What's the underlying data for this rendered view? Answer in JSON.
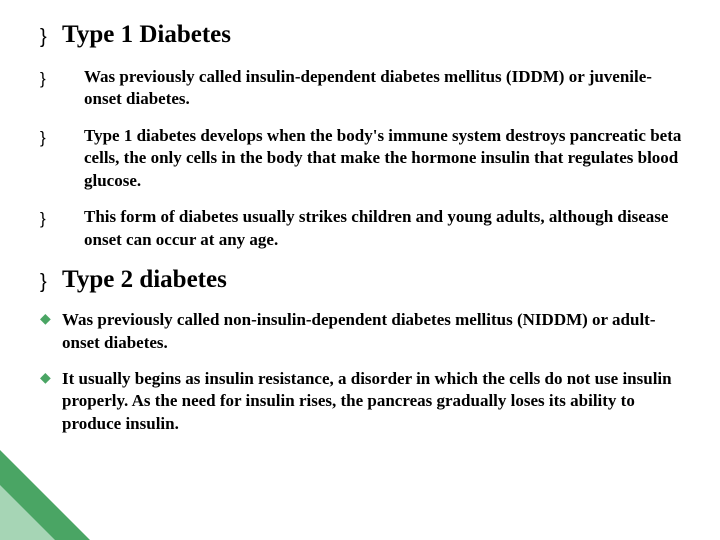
{
  "slide": {
    "heading1": "Type 1 Diabetes",
    "bullets1": [
      "Was previously called insulin-dependent diabetes mellitus (IDDM) or juvenile-onset diabetes.",
      "Type 1 diabetes develops when the body's immune system destroys pancreatic beta cells, the only cells in the body that make the hormone insulin that regulates blood glucose.",
      "This form of diabetes usually strikes children and young adults, although disease onset can occur at any age."
    ],
    "heading2": "Type 2 diabetes",
    "bullets2": [
      "Was previously called non-insulin-dependent diabetes mellitus (NIDDM) or adult-onset diabetes.",
      "It usually begins as insulin resistance, a disorder in which the cells do not use insulin properly. As the need for insulin rises, the pancreas gradually loses its ability to produce insulin."
    ]
  },
  "style": {
    "accent_color": "#4aa564",
    "accent_light": "#a6d5b5",
    "background": "#ffffff",
    "heading_fontsize": 25,
    "body_fontsize": 17,
    "font_family": "Times New Roman"
  }
}
